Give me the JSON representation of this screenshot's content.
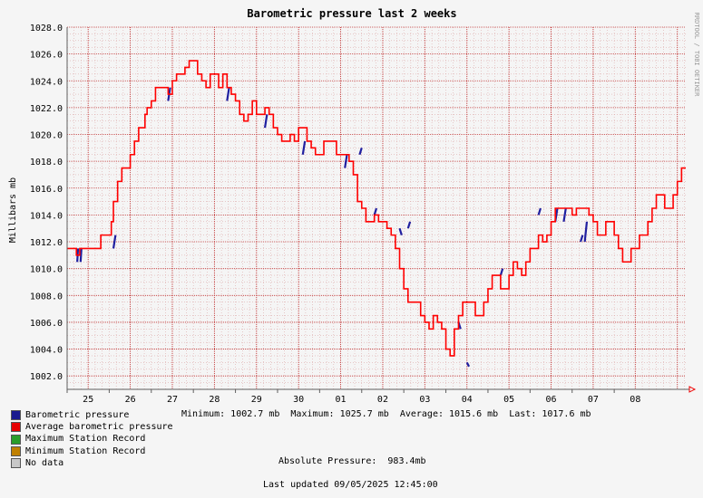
{
  "chart_data": {
    "type": "line",
    "title": "Barometric pressure last 2 weeks",
    "ylabel": "Millibars   mb",
    "watermark": "RRDTOOL / TOBI OETIKER",
    "ylim": [
      1001.0,
      1028.0
    ],
    "y_ticks": [
      "1002.0",
      "1004.0",
      "1006.0",
      "1008.0",
      "1010.0",
      "1012.0",
      "1014.0",
      "1016.0",
      "1018.0",
      "1020.0",
      "1022.0",
      "1024.0",
      "1026.0",
      "1028.0"
    ],
    "x_ticks": [
      "25",
      "26",
      "27",
      "28",
      "29",
      "30",
      "01",
      "02",
      "03",
      "04",
      "05",
      "06",
      "07",
      "08"
    ],
    "colors": {
      "pressure": "#2020a0",
      "average": "#ff0000",
      "grid": "#c03030",
      "axis": "#606060"
    },
    "series": [
      {
        "name": "Average barometric pressure",
        "x": [
          0,
          0.2,
          0.22,
          0.28,
          0.3,
          0.35,
          0.4,
          0.45,
          0.5,
          0.6,
          0.7,
          0.8,
          0.9,
          1.0,
          1.05,
          1.1,
          1.2,
          1.3,
          1.4,
          1.5,
          1.6,
          1.7,
          1.8,
          1.85,
          1.9,
          2.0,
          2.1,
          2.2,
          2.3,
          2.4,
          2.5,
          2.6,
          2.7,
          2.8,
          2.9,
          3.0,
          3.1,
          3.2,
          3.3,
          3.4,
          3.5,
          3.6,
          3.7,
          3.75,
          3.8,
          3.9,
          4.0,
          4.1,
          4.2,
          4.3,
          4.4,
          4.5,
          4.6,
          4.7,
          4.8,
          4.9,
          5.0,
          5.1,
          5.2,
          5.3,
          5.4,
          5.5,
          5.6,
          5.7,
          5.8,
          5.9,
          6.0,
          6.1,
          6.2,
          6.3,
          6.4,
          6.5,
          6.6,
          6.7,
          6.8,
          6.9,
          7.0,
          7.1,
          7.2,
          7.3,
          7.4,
          7.5,
          7.6,
          7.7,
          7.8,
          7.9,
          8.0,
          8.1,
          8.2,
          8.3,
          8.4,
          8.5,
          8.6,
          8.7,
          8.8,
          8.9,
          9.0,
          9.1,
          9.2,
          9.3,
          9.4,
          9.5,
          9.6,
          9.7,
          9.8,
          9.9,
          10.0,
          10.1,
          10.2,
          10.3,
          10.4,
          10.5,
          10.6,
          10.7,
          10.8,
          10.9,
          11.0,
          11.1,
          11.2,
          11.3,
          11.4,
          11.5,
          11.6,
          11.7,
          11.8,
          11.9,
          12.0,
          12.1,
          12.2,
          12.3,
          12.4,
          12.5,
          12.6,
          12.7,
          12.8,
          12.9,
          13.0,
          13.1,
          13.2,
          13.3,
          13.4,
          13.5,
          13.6,
          13.7,
          13.8,
          13.9,
          14.0,
          14.1,
          14.2,
          14.3,
          14.4,
          14.5,
          14.6,
          14.7
        ],
        "values": [
          1011.5,
          1011.5,
          1011.0,
          1011.0,
          1011.5,
          1011.5,
          1011.5,
          1011.5,
          1011.5,
          1011.5,
          1011.5,
          1012.5,
          1012.5,
          1012.5,
          1013.5,
          1015.0,
          1016.5,
          1017.5,
          1017.5,
          1018.5,
          1019.5,
          1020.5,
          1020.5,
          1021.5,
          1022.0,
          1022.5,
          1023.5,
          1023.5,
          1023.5,
          1023.0,
          1024.0,
          1024.5,
          1024.5,
          1025.0,
          1025.5,
          1025.5,
          1024.5,
          1024.0,
          1023.5,
          1024.5,
          1024.5,
          1023.5,
          1024.5,
          1024.5,
          1023.5,
          1023.0,
          1022.5,
          1021.5,
          1021.0,
          1021.5,
          1022.5,
          1021.5,
          1021.5,
          1022.0,
          1021.5,
          1020.5,
          1020.0,
          1019.5,
          1019.5,
          1020.0,
          1019.5,
          1020.5,
          1020.5,
          1019.5,
          1019.0,
          1018.5,
          1018.5,
          1019.5,
          1019.5,
          1019.5,
          1018.5,
          1018.5,
          1018.5,
          1018.0,
          1017.0,
          1015.0,
          1014.5,
          1013.5,
          1013.5,
          1014.0,
          1013.5,
          1013.5,
          1013.0,
          1012.5,
          1011.5,
          1010.0,
          1008.5,
          1007.5,
          1007.5,
          1007.5,
          1006.5,
          1006.0,
          1005.5,
          1006.5,
          1006.0,
          1005.5,
          1004.0,
          1003.5,
          1005.5,
          1006.5,
          1007.5,
          1007.5,
          1007.5,
          1006.5,
          1006.5,
          1007.5,
          1008.5,
          1009.5,
          1009.5,
          1008.5,
          1008.5,
          1009.5,
          1010.5,
          1010.0,
          1009.5,
          1010.5,
          1011.5,
          1011.5,
          1012.5,
          1012.0,
          1012.5,
          1013.5,
          1014.5,
          1014.5,
          1014.5,
          1014.5,
          1014.0,
          1014.5,
          1014.5,
          1014.5,
          1014.0,
          1013.5,
          1012.5,
          1012.5,
          1013.5,
          1013.5,
          1012.5,
          1011.5,
          1010.5,
          1010.5,
          1011.5,
          1011.5,
          1012.5,
          1012.5,
          1013.5,
          1014.5,
          1015.5,
          1015.5,
          1014.5,
          1014.5,
          1015.5,
          1016.5,
          1017.5,
          1017.5
        ]
      },
      {
        "name": "Barometric pressure",
        "x": [
          0.24,
          0.26,
          0.32,
          0.34,
          1.1,
          1.15,
          2.4,
          2.45,
          3.8,
          3.85,
          4.7,
          4.75,
          5.6,
          5.65,
          6.6,
          6.65,
          6.95,
          7.0,
          7.3,
          7.35,
          7.9,
          7.95,
          8.1,
          8.15,
          9.3,
          9.35,
          9.5,
          9.55,
          10.3,
          10.35,
          11.2,
          11.25,
          11.6,
          11.65,
          11.8,
          11.85,
          12.2,
          12.25,
          12.3,
          12.35
        ],
        "values": [
          1010.5,
          1011.5,
          1010.5,
          1011.5,
          1011.5,
          1012.5,
          1022.5,
          1023.5,
          1022.5,
          1023.5,
          1020.5,
          1021.5,
          1018.5,
          1019.5,
          1017.5,
          1018.5,
          1018.5,
          1019.0,
          1014.0,
          1014.5,
          1013.0,
          1012.5,
          1013.0,
          1013.5,
          1006.0,
          1005.5,
          1003.0,
          1002.7,
          1009.5,
          1010.0,
          1014.0,
          1014.5,
          1013.5,
          1014.5,
          1013.5,
          1014.5,
          1012.0,
          1012.5,
          1012.0,
          1013.5
        ]
      }
    ]
  },
  "legend": [
    {
      "label": "Barometric pressure",
      "color": "#1a1a8f"
    },
    {
      "label": "Average barometric pressure",
      "color": "#e60000"
    },
    {
      "label": "Maximum Station Record",
      "color": "#2a9d2a"
    },
    {
      "label": "Minimum Station Record",
      "color": "#c08000"
    },
    {
      "label": "No data",
      "color": "#c8c8c8"
    }
  ],
  "stats": "Minimum: 1002.7 mb  Maximum: 1025.7 mb  Average: 1015.6 mb  Last: 1017.6 mb",
  "absolute": "Absolute Pressure:  983.4mb",
  "updated": "Last updated 09/05/2025 12:45:00"
}
